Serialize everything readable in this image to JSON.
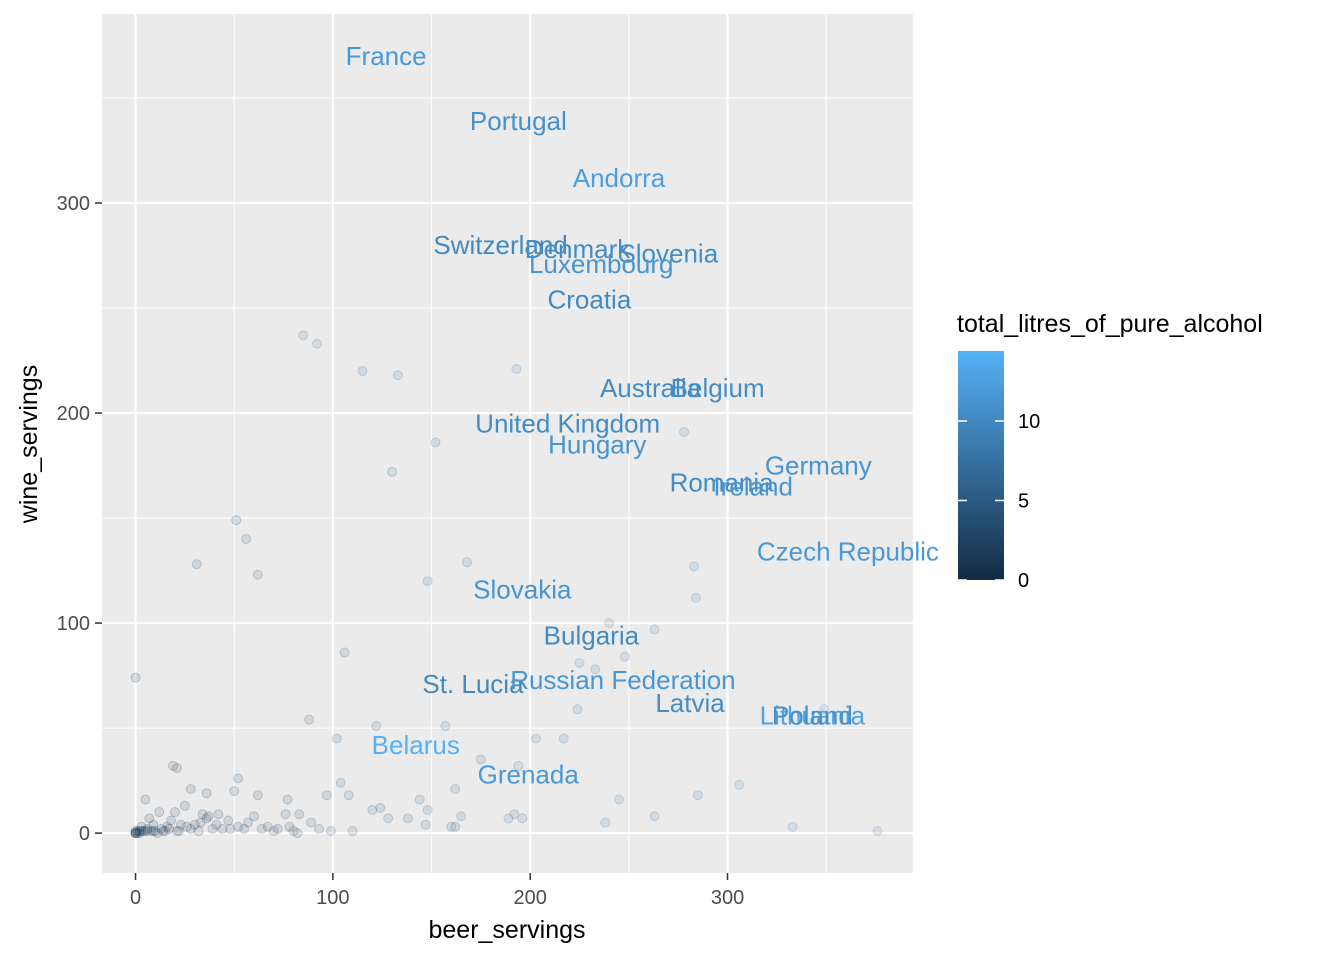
{
  "chart_data": {
    "type": "scatter",
    "xlabel": "beer_servings",
    "ylabel": "wine_servings",
    "xlim": [
      -17,
      394
    ],
    "ylim": [
      -19,
      390
    ],
    "x_ticks": [
      0,
      100,
      200,
      300
    ],
    "y_ticks": [
      0,
      100,
      200,
      300
    ],
    "x_tick_labels": [
      "0",
      "100",
      "200",
      "300"
    ],
    "y_tick_labels": [
      "0",
      "100",
      "200",
      "300"
    ],
    "grid": true,
    "legend": {
      "title": "total_litres_of_pure_alcohol",
      "placement": "right",
      "min": 0,
      "max": 14.4,
      "ticks": [
        0,
        5,
        10
      ],
      "tick_labels": [
        "0",
        "5",
        "10"
      ],
      "color_low": "#132B43",
      "color_high": "#56B1F7"
    },
    "labeled_points": [
      {
        "name": "France",
        "x": 127,
        "y": 370,
        "alcohol": 11.8
      },
      {
        "name": "Portugal",
        "x": 194,
        "y": 339,
        "alcohol": 11.0
      },
      {
        "name": "Andorra",
        "x": 245,
        "y": 312,
        "alcohol": 12.4
      },
      {
        "name": "Switzerland",
        "x": 185,
        "y": 280,
        "alcohol": 10.2
      },
      {
        "name": "Denmark",
        "x": 224,
        "y": 278,
        "alcohol": 10.4
      },
      {
        "name": "Slovenia",
        "x": 270,
        "y": 276,
        "alcohol": 10.6
      },
      {
        "name": "Luxembourg",
        "x": 236,
        "y": 271,
        "alcohol": 11.4
      },
      {
        "name": "Croatia",
        "x": 230,
        "y": 254,
        "alcohol": 10.2
      },
      {
        "name": "Australia",
        "x": 261,
        "y": 212,
        "alcohol": 10.4
      },
      {
        "name": "Belgium",
        "x": 295,
        "y": 212,
        "alcohol": 10.5
      },
      {
        "name": "United Kingdom",
        "x": 219,
        "y": 195,
        "alcohol": 10.4
      },
      {
        "name": "Hungary",
        "x": 234,
        "y": 185,
        "alcohol": 11.3
      },
      {
        "name": "Germany",
        "x": 346,
        "y": 175,
        "alcohol": 11.3
      },
      {
        "name": "Romania",
        "x": 297,
        "y": 167,
        "alcohol": 10.4
      },
      {
        "name": "Ireland",
        "x": 313,
        "y": 165,
        "alcohol": 11.4
      },
      {
        "name": "Czech Republic",
        "x": 361,
        "y": 134,
        "alcohol": 11.8
      },
      {
        "name": "Slovakia",
        "x": 196,
        "y": 116,
        "alcohol": 11.4
      },
      {
        "name": "Bulgaria",
        "x": 231,
        "y": 94,
        "alcohol": 10.3
      },
      {
        "name": "St. Lucia",
        "x": 171,
        "y": 71,
        "alcohol": 10.1
      },
      {
        "name": "Russian Federation",
        "x": 247,
        "y": 73,
        "alcohol": 11.5
      },
      {
        "name": "Latvia",
        "x": 281,
        "y": 62,
        "alcohol": 10.5
      },
      {
        "name": "Lithuania",
        "x": 343,
        "y": 56,
        "alcohol": 12.9
      },
      {
        "name": "Poland",
        "x": 343,
        "y": 56,
        "alcohol": 10.9
      },
      {
        "name": "Belarus",
        "x": 142,
        "y": 42,
        "alcohol": 14.4
      },
      {
        "name": "Grenada",
        "x": 199,
        "y": 28,
        "alcohol": 11.9
      }
    ],
    "points": [
      [
        85,
        237,
        7
      ],
      [
        92,
        233,
        7
      ],
      [
        115,
        220,
        6
      ],
      [
        133,
        218,
        6
      ],
      [
        193,
        221,
        8
      ],
      [
        152,
        186,
        6
      ],
      [
        130,
        172,
        6
      ],
      [
        278,
        191,
        8
      ],
      [
        51,
        149,
        4
      ],
      [
        56,
        140,
        4
      ],
      [
        31,
        128,
        4
      ],
      [
        62,
        123,
        4
      ],
      [
        168,
        129,
        6
      ],
      [
        148,
        120,
        6
      ],
      [
        283,
        127,
        8
      ],
      [
        284,
        112,
        8
      ],
      [
        263,
        97,
        8
      ],
      [
        240,
        100,
        8
      ],
      [
        248,
        84,
        8
      ],
      [
        233,
        78,
        8
      ],
      [
        225,
        81,
        8
      ],
      [
        106,
        86,
        5
      ],
      [
        88,
        54,
        4
      ],
      [
        122,
        51,
        5
      ],
      [
        157,
        51,
        6
      ],
      [
        224,
        59,
        8
      ],
      [
        203,
        45,
        8
      ],
      [
        217,
        45,
        8
      ],
      [
        102,
        45,
        5
      ],
      [
        0,
        74,
        2
      ],
      [
        5,
        16,
        2
      ],
      [
        19,
        32,
        2
      ],
      [
        21,
        31,
        2
      ],
      [
        28,
        21,
        2
      ],
      [
        36,
        19,
        2
      ],
      [
        52,
        26,
        3
      ],
      [
        50,
        20,
        3
      ],
      [
        62,
        18,
        3
      ],
      [
        77,
        16,
        3
      ],
      [
        83,
        9,
        3
      ],
      [
        104,
        24,
        5
      ],
      [
        108,
        18,
        5
      ],
      [
        97,
        18,
        4
      ],
      [
        120,
        11,
        5
      ],
      [
        124,
        12,
        5
      ],
      [
        128,
        7,
        5
      ],
      [
        138,
        7,
        5
      ],
      [
        144,
        16,
        5
      ],
      [
        148,
        11,
        5
      ],
      [
        147,
        4,
        5
      ],
      [
        162,
        21,
        6
      ],
      [
        165,
        8,
        6
      ],
      [
        162,
        3,
        6
      ],
      [
        160,
        3,
        6
      ],
      [
        175,
        35,
        6
      ],
      [
        194,
        32,
        7
      ],
      [
        192,
        9,
        7
      ],
      [
        189,
        7,
        7
      ],
      [
        196,
        7,
        7
      ],
      [
        238,
        5,
        8
      ],
      [
        245,
        16,
        8
      ],
      [
        263,
        8,
        8
      ],
      [
        285,
        18,
        8
      ],
      [
        306,
        23,
        9
      ],
      [
        333,
        3,
        9
      ],
      [
        376,
        1,
        9
      ],
      [
        349,
        59,
        10
      ],
      [
        110,
        1,
        4
      ],
      [
        99,
        1,
        4
      ],
      [
        89,
        5,
        4
      ],
      [
        93,
        2,
        4
      ],
      [
        80,
        1,
        3
      ],
      [
        76,
        9,
        3
      ],
      [
        72,
        2,
        3
      ],
      [
        67,
        3,
        3
      ],
      [
        60,
        8,
        3
      ],
      [
        55,
        2,
        3
      ],
      [
        52,
        3,
        3
      ],
      [
        47,
        6,
        2
      ],
      [
        44,
        2,
        2
      ],
      [
        41,
        4,
        2
      ],
      [
        39,
        2,
        2
      ],
      [
        36,
        7,
        2
      ],
      [
        34,
        9,
        2
      ],
      [
        32,
        1,
        2
      ],
      [
        30,
        4,
        2
      ],
      [
        28,
        2,
        2
      ],
      [
        25,
        13,
        2
      ],
      [
        23,
        4,
        2
      ],
      [
        21,
        1,
        2
      ],
      [
        20,
        10,
        2
      ],
      [
        18,
        6,
        2
      ],
      [
        16,
        3,
        2
      ],
      [
        15,
        1,
        2
      ],
      [
        13,
        2,
        2
      ],
      [
        12,
        10,
        2
      ],
      [
        10,
        1,
        2
      ],
      [
        9,
        4,
        2
      ],
      [
        8,
        1,
        2
      ],
      [
        7,
        7,
        1
      ],
      [
        6,
        2,
        1
      ],
      [
        5,
        1,
        1
      ],
      [
        4,
        1,
        1
      ],
      [
        3,
        3,
        1
      ],
      [
        2,
        1,
        1
      ],
      [
        1,
        1,
        1
      ],
      [
        0,
        0,
        0
      ],
      [
        0,
        0,
        0
      ],
      [
        0,
        0,
        1
      ],
      [
        0,
        1,
        0
      ],
      [
        1,
        0,
        0
      ],
      [
        2,
        0,
        1
      ],
      [
        3,
        1,
        1
      ],
      [
        6,
        1,
        1
      ],
      [
        9,
        1,
        1
      ],
      [
        11,
        0,
        1
      ],
      [
        14,
        1,
        1
      ],
      [
        17,
        2,
        1
      ],
      [
        22,
        1,
        2
      ],
      [
        26,
        3,
        2
      ],
      [
        33,
        5,
        2
      ],
      [
        37,
        8,
        2
      ],
      [
        42,
        9,
        2
      ],
      [
        48,
        2,
        2
      ],
      [
        57,
        5,
        3
      ],
      [
        64,
        2,
        3
      ],
      [
        70,
        1,
        3
      ],
      [
        78,
        3,
        3
      ],
      [
        82,
        0,
        3
      ]
    ]
  }
}
